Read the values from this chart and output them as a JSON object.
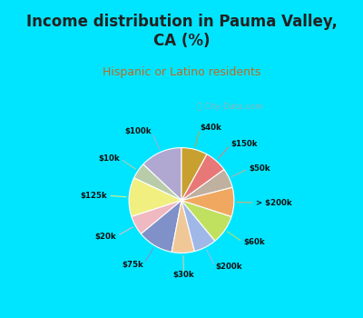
{
  "title": "Income distribution in Pauma Valley,\nCA (%)",
  "subtitle": "Hispanic or Latino residents",
  "watermark": "ⓘ City-Data.com",
  "labels": [
    "$100k",
    "$10k",
    "$125k",
    "$20k",
    "$75k",
    "$30k",
    "$200k",
    "$60k",
    "> $200k",
    "$50k",
    "$150k",
    "$40k"
  ],
  "values": [
    13,
    5,
    12,
    6,
    11,
    7,
    7,
    9,
    9,
    6,
    7,
    8
  ],
  "colors": [
    "#b0a8d0",
    "#b8ccaa",
    "#f0ef80",
    "#f0b8c0",
    "#8090c8",
    "#f0c898",
    "#a0b8e8",
    "#c0e060",
    "#f0a860",
    "#c0b0a0",
    "#e87878",
    "#c8a030"
  ],
  "bg_color": "#00e5ff",
  "chart_bg": "#e0f0e8",
  "title_color": "#222222",
  "subtitle_color": "#c06820",
  "startangle": 90,
  "title_fontsize": 12,
  "subtitle_fontsize": 9
}
